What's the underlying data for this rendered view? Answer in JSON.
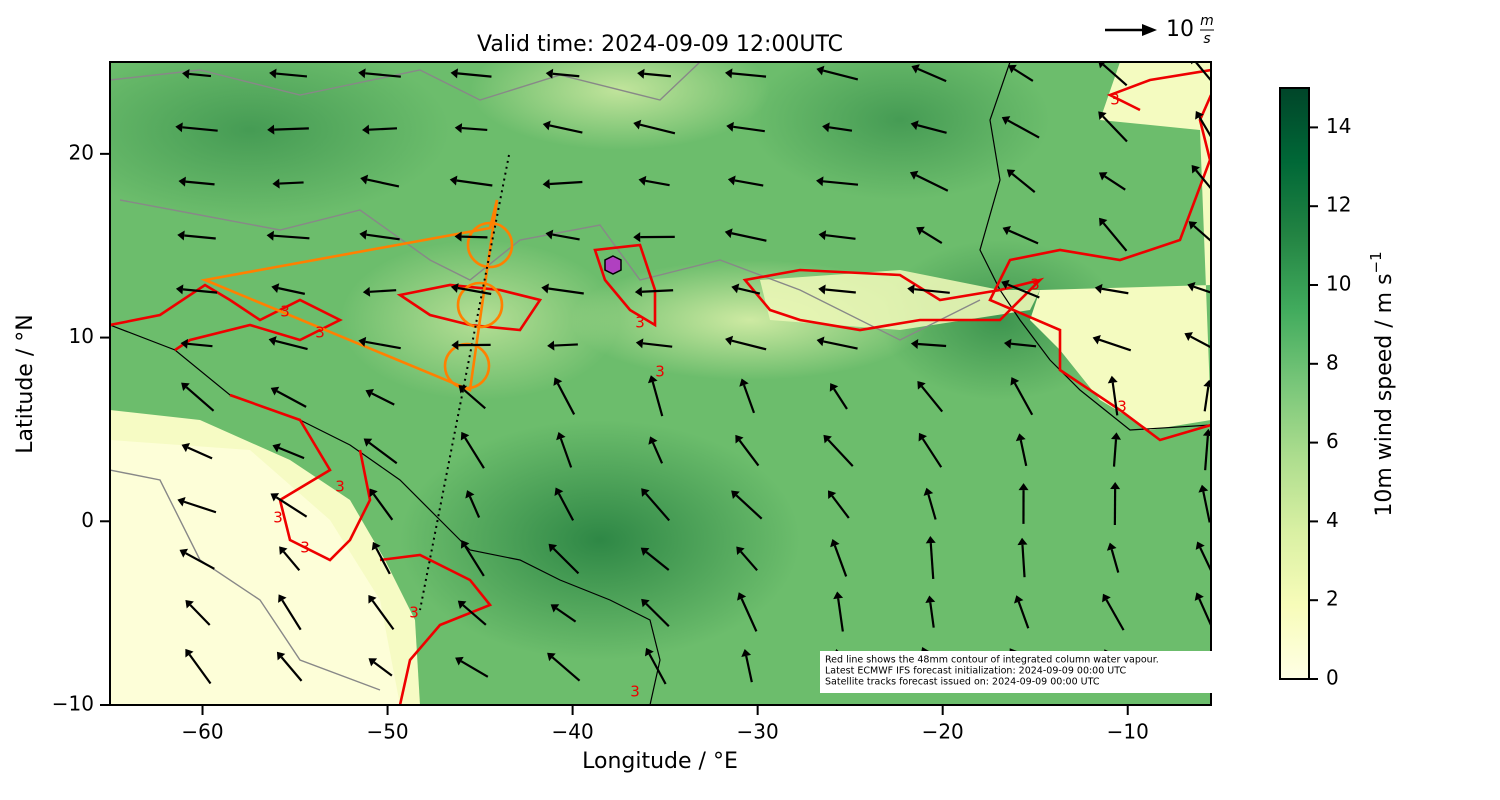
{
  "chart_data": {
    "type": "map",
    "title": "Valid time: 2024-09-09 12:00UTC",
    "x_label": "Longitude / °E",
    "y_label": "Latitude / °N",
    "xlim": [
      -65,
      -5.5
    ],
    "ylim": [
      -10,
      25
    ],
    "xticks": [
      {
        "value": -60,
        "label": "−60"
      },
      {
        "value": -50,
        "label": "−50"
      },
      {
        "value": -40,
        "label": "−40"
      },
      {
        "value": -30,
        "label": "−30"
      },
      {
        "value": -20,
        "label": "−20"
      },
      {
        "value": -10,
        "label": "−10"
      }
    ],
    "yticks": [
      {
        "value": -10,
        "label": "−10"
      },
      0,
      10,
      20
    ],
    "colorbar_label": "10m wind speed / m s",
    "colorbar_label_exponent": "−1",
    "colorbar_lim": [
      0,
      15
    ],
    "colorbar_ticks": [
      0,
      2,
      4,
      6,
      8,
      10,
      12,
      14
    ],
    "colormap_colors": [
      "#ffffe5",
      "#f7fcb9",
      "#d9f0a3",
      "#addd8e",
      "#78c679",
      "#41ab5d",
      "#238443",
      "#006837",
      "#004529"
    ],
    "quiver_key": {
      "label": "10",
      "unit_numerator": "m",
      "unit_denominator": "s"
    },
    "contour_label": "3",
    "annotation": [
      "Red line shows the 48mm contour of integrated column water vapour.",
      "Latest ECMWF IFS forecast initialization: 2024-09-09 00:00 UTC",
      "Satellite tracks forecast issued on: 2024-09-09 00:00 UTC"
    ]
  }
}
